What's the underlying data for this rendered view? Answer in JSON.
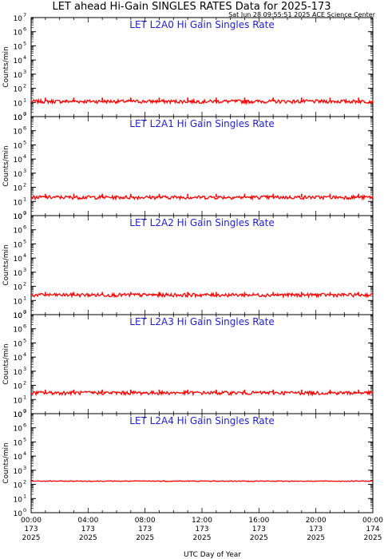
{
  "title": "LET ahead Hi-Gain SINGLES RATES Data for 2025-173",
  "timestamp": "Sat Jun 28 09:55:51 2025 ACE Science Center",
  "xlabel": "UTC Day of Year",
  "ylabel": "Counts/min",
  "colors": {
    "series": "#ff0000",
    "panel_title": "#1f1fd0",
    "axes": "#000000"
  },
  "chart_data": [
    {
      "type": "line",
      "title": "LET L2A0 Hi Gain Singles Rate",
      "yscale": "log",
      "ylim": [
        1,
        10000000
      ],
      "xlim": [
        "00:00 173 2025",
        "00:00 174 2025"
      ],
      "baseline": 12,
      "x_hours": [
        0,
        1,
        2,
        3,
        4,
        5,
        6,
        7,
        8,
        9,
        10,
        11,
        12,
        13,
        14,
        15,
        16,
        17,
        18,
        19,
        20,
        21,
        22,
        23,
        24
      ],
      "values": [
        12,
        22,
        12,
        22,
        12,
        22,
        12,
        22,
        12,
        22,
        12,
        22,
        12,
        22,
        12,
        22,
        12,
        22,
        12,
        22,
        12,
        22,
        12,
        22,
        12
      ]
    },
    {
      "type": "line",
      "title": "LET L2A1 Hi Gain Singles Rate",
      "yscale": "log",
      "ylim": [
        1,
        10000000
      ],
      "xlim": [
        "00:00 173 2025",
        "00:00 174 2025"
      ],
      "baseline": 20,
      "x_hours": [
        0,
        1,
        2,
        3,
        4,
        5,
        6,
        7,
        8,
        9,
        10,
        11,
        12,
        13,
        14,
        15,
        16,
        17,
        18,
        19,
        20,
        21,
        22,
        23,
        24
      ],
      "values": [
        20,
        35,
        20,
        35,
        20,
        35,
        20,
        35,
        20,
        35,
        20,
        35,
        20,
        35,
        20,
        35,
        20,
        35,
        20,
        35,
        20,
        35,
        20,
        35,
        20
      ]
    },
    {
      "type": "line",
      "title": "LET L2A2 Hi Gain Singles Rate",
      "yscale": "log",
      "ylim": [
        1,
        10000000
      ],
      "xlim": [
        "00:00 173 2025",
        "00:00 174 2025"
      ],
      "baseline": 25,
      "x_hours": [
        0,
        1,
        2,
        3,
        4,
        5,
        6,
        7,
        8,
        9,
        10,
        11,
        12,
        13,
        14,
        15,
        16,
        17,
        18,
        19,
        20,
        21,
        22,
        23,
        24
      ],
      "values": [
        25,
        40,
        25,
        40,
        25,
        40,
        25,
        40,
        25,
        40,
        25,
        40,
        25,
        40,
        25,
        40,
        25,
        40,
        25,
        40,
        25,
        40,
        25,
        40,
        25
      ]
    },
    {
      "type": "line",
      "title": "LET L2A3 Hi Gain Singles Rate",
      "yscale": "log",
      "ylim": [
        1,
        10000000
      ],
      "xlim": [
        "00:00 173 2025",
        "00:00 174 2025"
      ],
      "baseline": 30,
      "x_hours": [
        0,
        1,
        2,
        3,
        4,
        5,
        6,
        7,
        8,
        9,
        10,
        11,
        12,
        13,
        14,
        15,
        16,
        17,
        18,
        19,
        20,
        21,
        22,
        23,
        24
      ],
      "values": [
        30,
        50,
        30,
        50,
        30,
        50,
        30,
        50,
        30,
        50,
        30,
        50,
        30,
        50,
        30,
        50,
        30,
        50,
        30,
        50,
        30,
        50,
        30,
        50,
        30
      ]
    },
    {
      "type": "line",
      "title": "LET L2A4 Hi Gain Singles Rate",
      "yscale": "log",
      "ylim": [
        1,
        10000000
      ],
      "xlim": [
        "00:00 173 2025",
        "00:00 174 2025"
      ],
      "baseline": 170,
      "x_hours": [
        0,
        1,
        2,
        3,
        4,
        5,
        6,
        7,
        8,
        9,
        10,
        11,
        12,
        13,
        14,
        15,
        16,
        17,
        18,
        19,
        20,
        21,
        22,
        23,
        24
      ],
      "values": [
        170,
        180,
        170,
        180,
        170,
        180,
        170,
        180,
        170,
        180,
        170,
        180,
        170,
        180,
        170,
        180,
        170,
        180,
        170,
        180,
        170,
        180,
        170,
        180,
        170
      ]
    }
  ],
  "y_ticks": [
    "0",
    "1",
    "2",
    "3",
    "4",
    "5",
    "6",
    "7"
  ],
  "y_tick_base": "10",
  "x_ticks": [
    {
      "hour": 0,
      "time": "00:00",
      "day": "173",
      "year": "2025"
    },
    {
      "hour": 4,
      "time": "04:00",
      "day": "173",
      "year": "2025"
    },
    {
      "hour": 8,
      "time": "08:00",
      "day": "173",
      "year": "2025"
    },
    {
      "hour": 12,
      "time": "12:00",
      "day": "173",
      "year": "2025"
    },
    {
      "hour": 16,
      "time": "16:00",
      "day": "173",
      "year": "2025"
    },
    {
      "hour": 20,
      "time": "20:00",
      "day": "173",
      "year": "2025"
    },
    {
      "hour": 24,
      "time": "00:00",
      "day": "174",
      "year": "2025"
    }
  ]
}
